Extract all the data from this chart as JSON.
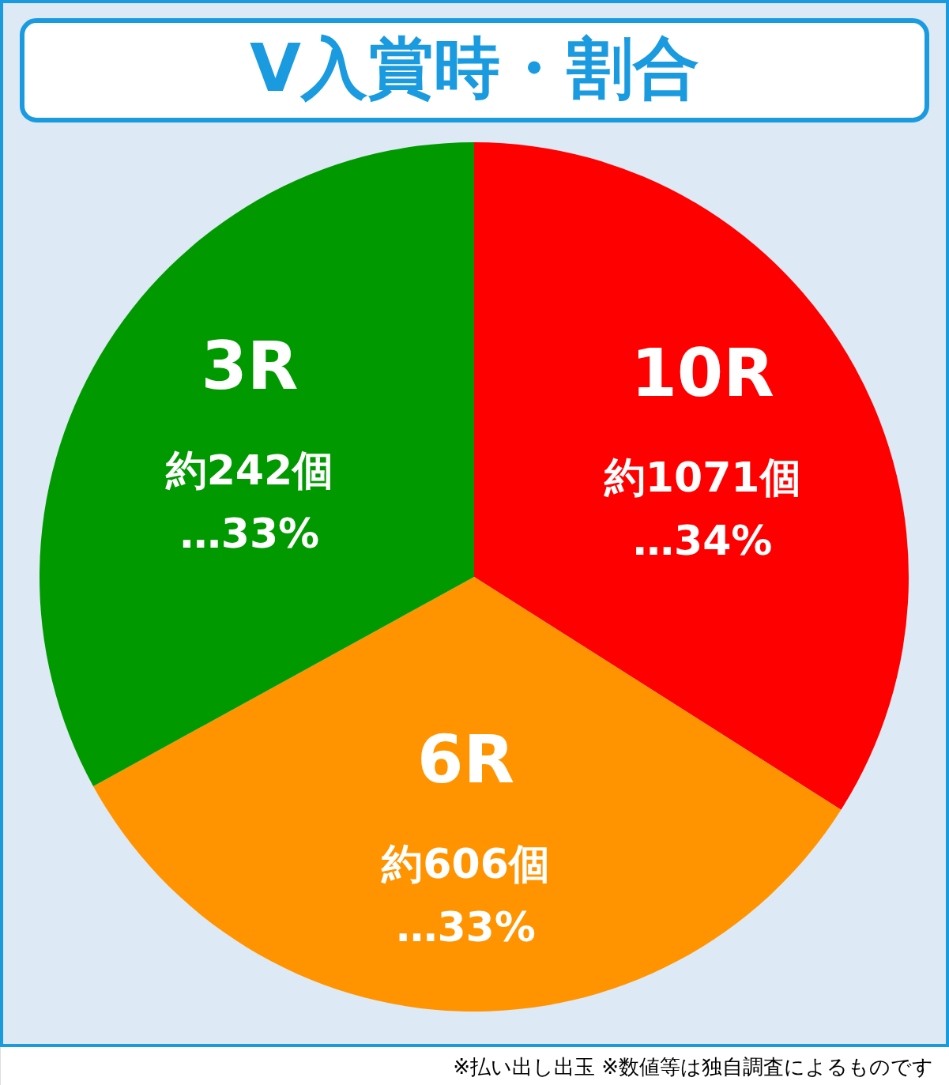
{
  "chart_data": {
    "type": "pie",
    "title": "V入賞時・割合",
    "categories": [
      "10R",
      "6R",
      "3R"
    ],
    "values": [
      34,
      33,
      33
    ],
    "colors": [
      "#ff0000",
      "#ff9400",
      "#009900"
    ],
    "value_labels": [
      "約1071個\n…34%",
      "約606個\n…33%",
      "約242個\n…33%"
    ],
    "annotations": [
      "※払い出し出玉 ※数値等は独自調査によるものです"
    ]
  }
}
